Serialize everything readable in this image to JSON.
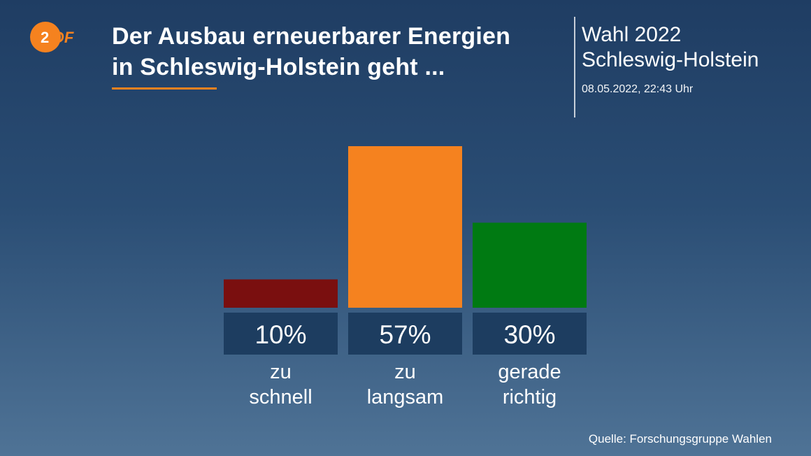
{
  "brand": {
    "name": "ZDF",
    "accent_color": "#f5821f"
  },
  "header": {
    "title_lines": [
      "Der Ausbau erneuerbarer Energien",
      "in Schleswig-Holstein geht ..."
    ],
    "context_lines": [
      "Wahl 2022",
      "Schleswig-Holstein"
    ],
    "timestamp": "08.05.2022, 22:43 Uhr"
  },
  "chart_data": {
    "type": "bar",
    "title": "Der Ausbau erneuerbarer Energien in Schleswig-Holstein geht ...",
    "categories": [
      [
        "zu",
        "schnell"
      ],
      [
        "zu",
        "langsam"
      ],
      [
        "gerade",
        "richtig"
      ]
    ],
    "values": [
      10,
      57,
      30
    ],
    "value_labels": [
      "10%",
      "57%",
      "30%"
    ],
    "colors": [
      "#7a0f0f",
      "#f5821f",
      "#007a12"
    ],
    "xlabel": "",
    "ylabel": "",
    "ylim": [
      0,
      57
    ],
    "grid": false,
    "legend": "none"
  },
  "footer": {
    "source": "Quelle: Forschungsgruppe Wahlen"
  }
}
